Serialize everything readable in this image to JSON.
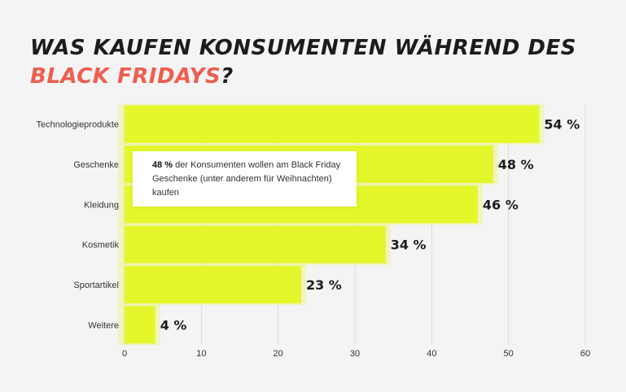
{
  "title": {
    "line1": "WAS KAUFEN KONSUMENTEN WÄHREND DES",
    "line2_highlight": "BLACK FRIDAYS",
    "line2_end": "?"
  },
  "tooltip": {
    "bold": "48 %",
    "text": " der Konsumenten wollen am Black Friday Geschenke (unter anderem für Weihnachten) kaufen"
  },
  "colors": {
    "bar": "#e4f72a",
    "grid": "#dddddd",
    "highlight": "#ee5e4e"
  },
  "chart_data": {
    "type": "bar",
    "orientation": "horizontal",
    "categories": [
      "Technologieprodukte",
      "Geschenke",
      "Kleidung",
      "Kosmetik",
      "Sportartikel",
      "Weitere"
    ],
    "values": [
      54,
      48,
      46,
      34,
      23,
      4
    ],
    "value_labels": [
      "54 %",
      "48 %",
      "46 %",
      "34 %",
      "23 %",
      "4 %"
    ],
    "xlim": [
      0,
      60
    ],
    "xticks": [
      0,
      10,
      20,
      30,
      40,
      50,
      60
    ],
    "grid": true,
    "title": "WAS KAUFEN KONSUMENTEN WÄHREND DES BLACK FRIDAYS?"
  }
}
